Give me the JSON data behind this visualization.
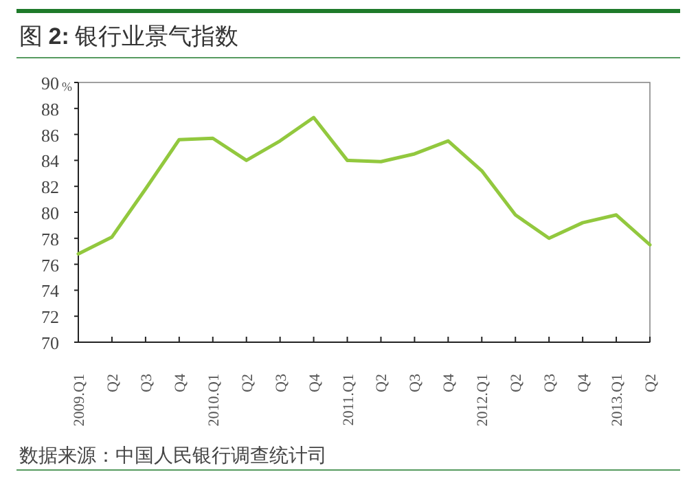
{
  "chart_data": {
    "type": "line",
    "title": "图 **2:** 银行业景气指数",
    "ylabel": "%",
    "categories": [
      "2009.Q1",
      "Q2",
      "Q3",
      "Q4",
      "2010.Q1",
      "Q2",
      "Q3",
      "Q4",
      "2011.Q1",
      "Q2",
      "Q3",
      "Q4",
      "2012.Q1",
      "Q2",
      "Q3",
      "Q4",
      "2013.Q1",
      "Q2"
    ],
    "series": [
      {
        "color": "#92c83e",
        "values": [
          76.8,
          78.1,
          81.8,
          85.6,
          85.7,
          84.0,
          85.5,
          87.3,
          84.0,
          83.9,
          84.5,
          85.5,
          83.2,
          79.8,
          78.0,
          79.2,
          79.8,
          77.5
        ]
      }
    ],
    "ylim": [
      70,
      90
    ],
    "yticks": [
      70,
      72,
      74,
      76,
      78,
      80,
      82,
      84,
      86,
      88,
      90
    ],
    "grid": false,
    "marker": "none",
    "line_style": "solid",
    "annotations": [
      "数据来源：中国人民银行调查统计司"
    ]
  }
}
